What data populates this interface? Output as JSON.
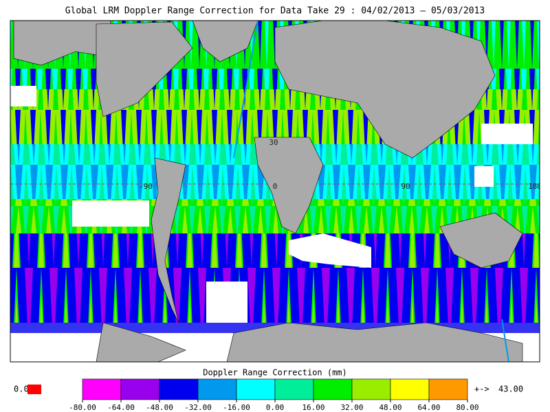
{
  "title": "Global LRM Doppler Range Correction for Data Take 29 : 04/02/2013 – 05/03/2013",
  "map": {
    "grid_labels": [
      "30",
      "-90",
      "0",
      "90",
      "180"
    ]
  },
  "colorbar": {
    "label": "Doppler Range Correction (mm)",
    "colors": [
      "#ff00ff",
      "#9900ee",
      "#0000ee",
      "#0099ee",
      "#00ffff",
      "#00ee99",
      "#00ee00",
      "#99ee00",
      "#ffff00",
      "#ff9900"
    ],
    "ticks": [
      {
        "value": -80,
        "label": "-80.00"
      },
      {
        "value": -64,
        "label": "-64.00"
      },
      {
        "value": -48,
        "label": "-48.00"
      },
      {
        "value": -32,
        "label": "-32.00"
      },
      {
        "value": -16,
        "label": "-16.00"
      },
      {
        "value": 0,
        "label": "0.00"
      },
      {
        "value": 16,
        "label": "16.00"
      },
      {
        "value": 32,
        "label": "32.00"
      },
      {
        "value": 48,
        "label": "48.00"
      },
      {
        "value": 64,
        "label": "64.00"
      },
      {
        "value": 80,
        "label": "80.00"
      }
    ],
    "low_label": "0.0",
    "low_color": "#ff0000",
    "high_arrow": "+->",
    "high_label": "43.00",
    "high_color": "#ff8800"
  }
}
